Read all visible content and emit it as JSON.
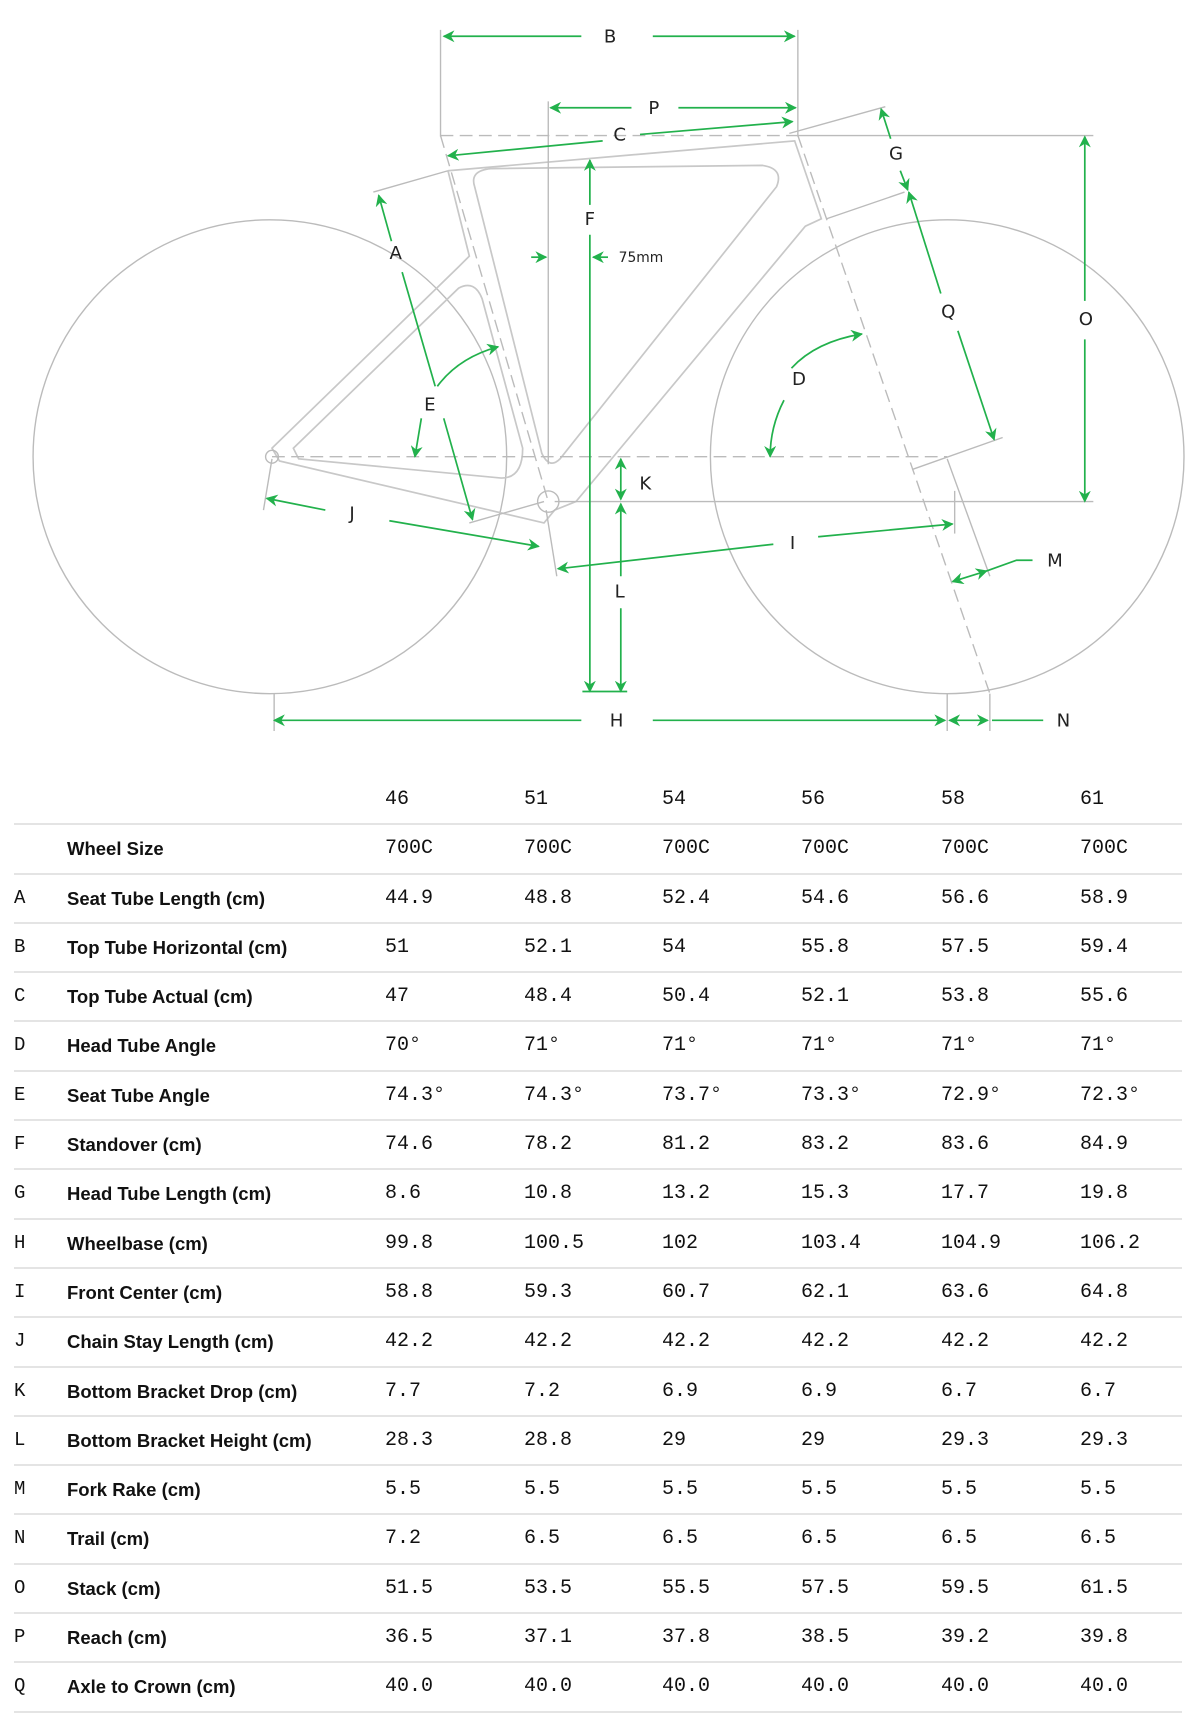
{
  "diagram": {
    "labels": {
      "A": "A",
      "B": "B",
      "C": "C",
      "D": "D",
      "E": "E",
      "F": "F",
      "G": "G",
      "H": "H",
      "I": "I",
      "J": "J",
      "K": "K",
      "L": "L",
      "M": "M",
      "N": "N",
      "O": "O",
      "P": "P",
      "Q": "Q"
    },
    "offset_note": "75mm",
    "accent_color": "#22b14c",
    "line_color": "#bbbbbb"
  },
  "table": {
    "sizes": [
      "46",
      "51",
      "54",
      "56",
      "58",
      "61"
    ],
    "rows": [
      {
        "letter": "",
        "label": "Wheel Size",
        "values": [
          "700C",
          "700C",
          "700C",
          "700C",
          "700C",
          "700C"
        ]
      },
      {
        "letter": "A",
        "label": "Seat Tube Length (cm)",
        "values": [
          "44.9",
          "48.8",
          "52.4",
          "54.6",
          "56.6",
          "58.9"
        ]
      },
      {
        "letter": "B",
        "label": "Top Tube Horizontal (cm)",
        "values": [
          "51",
          "52.1",
          "54",
          "55.8",
          "57.5",
          "59.4"
        ]
      },
      {
        "letter": "C",
        "label": "Top Tube Actual (cm)",
        "values": [
          "47",
          "48.4",
          "50.4",
          "52.1",
          "53.8",
          "55.6"
        ]
      },
      {
        "letter": "D",
        "label": "Head Tube Angle",
        "values": [
          "70°",
          "71°",
          "71°",
          "71°",
          "71°",
          "71°"
        ]
      },
      {
        "letter": "E",
        "label": "Seat Tube Angle",
        "values": [
          "74.3°",
          "74.3°",
          "73.7°",
          "73.3°",
          "72.9°",
          "72.3°"
        ]
      },
      {
        "letter": "F",
        "label": "Standover (cm)",
        "values": [
          "74.6",
          "78.2",
          "81.2",
          "83.2",
          "83.6",
          "84.9"
        ]
      },
      {
        "letter": "G",
        "label": "Head Tube Length (cm)",
        "values": [
          "8.6",
          "10.8",
          "13.2",
          "15.3",
          "17.7",
          "19.8"
        ]
      },
      {
        "letter": "H",
        "label": "Wheelbase (cm)",
        "values": [
          "99.8",
          "100.5",
          "102",
          "103.4",
          "104.9",
          "106.2"
        ]
      },
      {
        "letter": "I",
        "label": "Front Center (cm)",
        "values": [
          "58.8",
          "59.3",
          "60.7",
          "62.1",
          "63.6",
          "64.8"
        ]
      },
      {
        "letter": "J",
        "label": "Chain Stay Length (cm)",
        "values": [
          "42.2",
          "42.2",
          "42.2",
          "42.2",
          "42.2",
          "42.2"
        ]
      },
      {
        "letter": "K",
        "label": "Bottom Bracket Drop (cm)",
        "values": [
          "7.7",
          "7.2",
          "6.9",
          "6.9",
          "6.7",
          "6.7"
        ]
      },
      {
        "letter": "L",
        "label": "Bottom Bracket Height (cm)",
        "values": [
          "28.3",
          "28.8",
          "29",
          "29",
          "29.3",
          "29.3"
        ]
      },
      {
        "letter": "M",
        "label": "Fork Rake (cm)",
        "values": [
          "5.5",
          "5.5",
          "5.5",
          "5.5",
          "5.5",
          "5.5"
        ]
      },
      {
        "letter": "N",
        "label": "Trail (cm)",
        "values": [
          "7.2",
          "6.5",
          "6.5",
          "6.5",
          "6.5",
          "6.5"
        ]
      },
      {
        "letter": "O",
        "label": "Stack (cm)",
        "values": [
          "51.5",
          "53.5",
          "55.5",
          "57.5",
          "59.5",
          "61.5"
        ]
      },
      {
        "letter": "P",
        "label": "Reach (cm)",
        "values": [
          "36.5",
          "37.1",
          "37.8",
          "38.5",
          "39.2",
          "39.8"
        ]
      },
      {
        "letter": "Q",
        "label": "Axle to Crown (cm)",
        "values": [
          "40.0",
          "40.0",
          "40.0",
          "40.0",
          "40.0",
          "40.0"
        ]
      }
    ]
  }
}
